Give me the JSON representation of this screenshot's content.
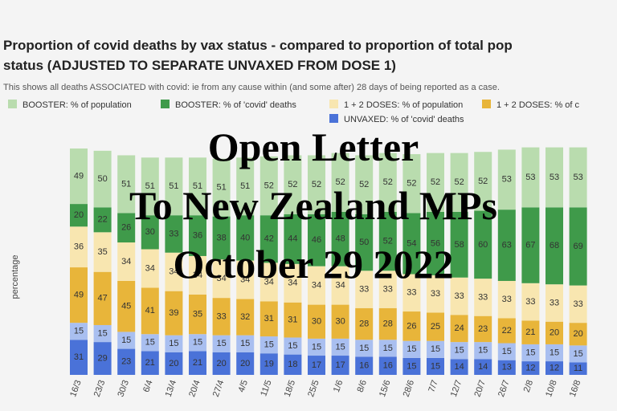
{
  "chart_data": {
    "type": "stacked_bar",
    "title": "Proportion of covid deaths by vax status - compared to proportion of total pop",
    "title_line2": "status (ADJUSTED TO SEPARATE UNVAXED FROM DOSE 1)",
    "subtitle": "This shows all deaths ASSOCIATED with covid: ie from any cause within (and some after) 28 days of being reported as a case.",
    "y_label": "percentage",
    "overlay": [
      "Open Letter",
      "To New Zealand MPs",
      "October 29 2022"
    ],
    "ylim": [
      0,
      200
    ],
    "categories": [
      "16/3",
      "23/3",
      "30/3",
      "6/4",
      "13/4",
      "20/4",
      "27/4",
      "4/5",
      "11/5",
      "18/5",
      "25/5",
      "1/6",
      "8/6",
      "15/6",
      "28/6",
      "7/7",
      "12/7",
      "20/7",
      "26/7",
      "2/8",
      "10/8",
      "16/8"
    ],
    "series": [
      {
        "name": "UNVAXED: % of 'covid' deaths",
        "color": "#4a72d8",
        "values": [
          31,
          29,
          23,
          21,
          20,
          21,
          20,
          20,
          19,
          18,
          17,
          17,
          16,
          16,
          15,
          15,
          14,
          14,
          13,
          12,
          12,
          11
        ]
      },
      {
        "color": "#a9bff0",
        "values": [
          15,
          15,
          15,
          15,
          15,
          15,
          15,
          15,
          15,
          15,
          15,
          15,
          15,
          15,
          15,
          15,
          15,
          15,
          15,
          15,
          15,
          15
        ]
      },
      {
        "name": "1 + 2 DOSES: % of c",
        "color": "#e8b53a",
        "values": [
          49,
          47,
          45,
          41,
          39,
          35,
          33,
          32,
          31,
          31,
          30,
          30,
          28,
          28,
          26,
          25,
          24,
          23,
          22,
          21,
          20,
          20
        ]
      },
      {
        "name": "1 + 2 DOSES: % of population",
        "color": "#f8e6b0",
        "values": [
          36,
          35,
          34,
          34,
          34,
          34,
          34,
          34,
          34,
          34,
          34,
          34,
          33,
          33,
          33,
          33,
          33,
          33,
          33,
          33,
          33,
          33
        ]
      },
      {
        "name": "BOOSTER: % of 'covid' deaths",
        "color": "#3f9a4a",
        "values": [
          20,
          22,
          26,
          30,
          33,
          36,
          38,
          40,
          42,
          44,
          46,
          48,
          50,
          52,
          54,
          56,
          58,
          60,
          63,
          67,
          68,
          69
        ]
      },
      {
        "name": "BOOSTER: % of population",
        "color": "#b9dcae",
        "values": [
          49,
          50,
          51,
          51,
          51,
          51,
          51,
          51,
          52,
          52,
          52,
          52,
          52,
          52,
          52,
          52,
          52,
          52,
          53,
          53,
          53,
          53
        ]
      }
    ]
  }
}
